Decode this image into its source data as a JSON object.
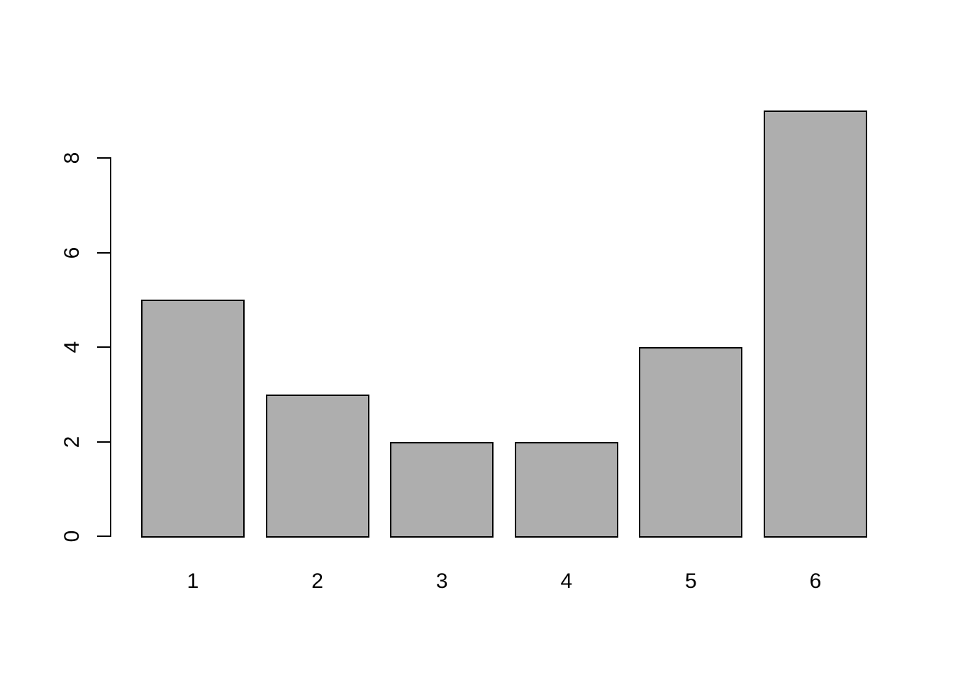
{
  "chart_data": {
    "type": "bar",
    "title": "",
    "xlabel": "",
    "ylabel": "",
    "categories": [
      "1",
      "2",
      "3",
      "4",
      "5",
      "6"
    ],
    "values": [
      5,
      3,
      2,
      2,
      4,
      9
    ],
    "ylim": [
      0,
      9
    ],
    "yticks": [
      "0",
      "2",
      "4",
      "6",
      "8"
    ],
    "ytick_values": [
      0,
      2,
      4,
      6,
      8
    ],
    "grid": false,
    "legend_position": "none",
    "colors": {
      "bar_fill": "#aeaeae",
      "bar_border": "#000000",
      "axis": "#000000",
      "background": "#ffffff"
    }
  }
}
